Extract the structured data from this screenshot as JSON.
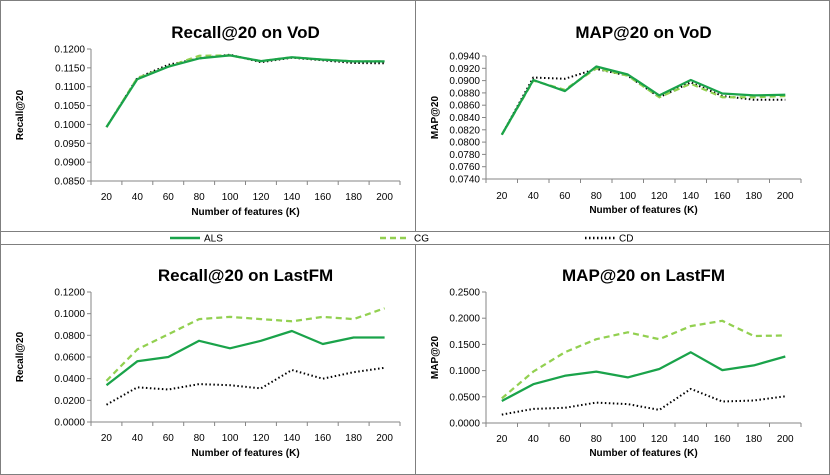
{
  "chart_data": [
    {
      "type": "line",
      "title": "Recall@20 on VoD",
      "xlabel": "Number of features (K)",
      "ylabel": "Recall@20",
      "x": [
        20,
        40,
        60,
        80,
        100,
        120,
        140,
        160,
        180,
        200
      ],
      "ylim": [
        0.085,
        0.12
      ],
      "yticks": [
        "0.0850",
        "0.0900",
        "0.0950",
        "0.1000",
        "0.1050",
        "0.1100",
        "0.1150",
        "0.1200"
      ],
      "series": [
        {
          "name": "ALS",
          "values": [
            0.0993,
            0.112,
            0.1153,
            0.1175,
            0.1183,
            0.1168,
            0.1178,
            0.1172,
            0.1167,
            0.1167
          ]
        },
        {
          "name": "CG",
          "values": [
            0.0993,
            0.1123,
            0.1153,
            0.1182,
            0.1183,
            0.1168,
            0.1178,
            0.1172,
            0.1167,
            0.1167
          ]
        },
        {
          "name": "CD",
          "values": [
            0.0993,
            0.1123,
            0.1158,
            0.1175,
            0.1185,
            0.1165,
            0.1177,
            0.117,
            0.1163,
            0.1162
          ]
        }
      ]
    },
    {
      "type": "line",
      "title": "MAP@20 on VoD",
      "xlabel": "Number of features (K)",
      "ylabel": "MAP@20",
      "x": [
        20,
        40,
        60,
        80,
        100,
        120,
        140,
        160,
        180,
        200
      ],
      "ylim": [
        0.074,
        0.094
      ],
      "yticks": [
        "0.0740",
        "0.0760",
        "0.0780",
        "0.0800",
        "0.0820",
        "0.0840",
        "0.0860",
        "0.0880",
        "0.0900",
        "0.0920",
        "0.0940"
      ],
      "series": [
        {
          "name": "ALS",
          "values": [
            0.0812,
            0.0901,
            0.0883,
            0.0923,
            0.091,
            0.0876,
            0.0901,
            0.0879,
            0.0876,
            0.0877
          ]
        },
        {
          "name": "CG",
          "values": [
            0.0812,
            0.09,
            0.0885,
            0.092,
            0.0908,
            0.0873,
            0.0895,
            0.0873,
            0.0873,
            0.0875
          ]
        },
        {
          "name": "CD",
          "values": [
            0.0812,
            0.0905,
            0.0903,
            0.0919,
            0.0908,
            0.0873,
            0.0897,
            0.0875,
            0.0869,
            0.0869
          ]
        }
      ]
    },
    {
      "type": "line",
      "title": "Recall@20 on LastFM",
      "xlabel": "Number of features (K)",
      "ylabel": "Recall@20",
      "x": [
        20,
        40,
        60,
        80,
        100,
        120,
        140,
        160,
        180,
        200
      ],
      "ylim": [
        0,
        0.12
      ],
      "yticks": [
        "0.0000",
        "0.0200",
        "0.0400",
        "0.0600",
        "0.0800",
        "0.1000",
        "0.1200"
      ],
      "series": [
        {
          "name": "ALS",
          "values": [
            0.034,
            0.056,
            0.06,
            0.075,
            0.068,
            0.075,
            0.084,
            0.072,
            0.078,
            0.078
          ]
        },
        {
          "name": "CG",
          "values": [
            0.038,
            0.067,
            0.081,
            0.095,
            0.097,
            0.095,
            0.093,
            0.097,
            0.095,
            0.105
          ]
        },
        {
          "name": "CD",
          "values": [
            0.016,
            0.032,
            0.03,
            0.035,
            0.034,
            0.031,
            0.048,
            0.04,
            0.046,
            0.05
          ]
        }
      ]
    },
    {
      "type": "line",
      "title": "MAP@20 on LastFM",
      "xlabel": "Number of features (K)",
      "ylabel": "MAP@20",
      "x": [
        20,
        40,
        60,
        80,
        100,
        120,
        140,
        160,
        180,
        200
      ],
      "ylim": [
        0,
        0.25
      ],
      "yticks": [
        "0.0000",
        "0.0500",
        "0.1000",
        "0.1500",
        "0.2000",
        "0.2500"
      ],
      "series": [
        {
          "name": "ALS",
          "values": [
            0.042,
            0.074,
            0.09,
            0.098,
            0.087,
            0.103,
            0.135,
            0.101,
            0.11,
            0.127
          ]
        },
        {
          "name": "CG",
          "values": [
            0.047,
            0.098,
            0.135,
            0.16,
            0.173,
            0.16,
            0.185,
            0.195,
            0.166,
            0.167
          ]
        },
        {
          "name": "CD",
          "values": [
            0.016,
            0.027,
            0.029,
            0.039,
            0.036,
            0.025,
            0.065,
            0.041,
            0.043,
            0.051
          ]
        }
      ]
    }
  ],
  "legend": {
    "placement": "middle",
    "items": [
      {
        "name": "ALS",
        "color": "#1aa34a",
        "style": "solid"
      },
      {
        "name": "CG",
        "color": "#92d050",
        "style": "dashed"
      },
      {
        "name": "CD",
        "color": "#000000",
        "style": "dotted"
      }
    ]
  }
}
